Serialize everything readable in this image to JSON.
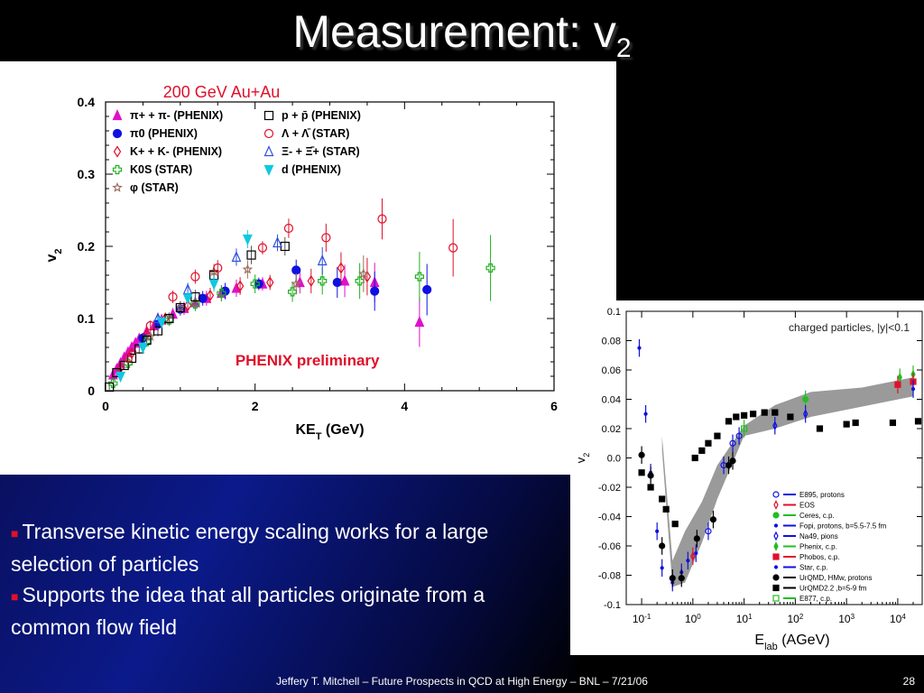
{
  "slide": {
    "title_main": "Measurement: v",
    "title_sub": "2",
    "footer": "Jeffery T. Mitchell – Future Prospects in QCD at High Energy – BNL – 7/21/06",
    "page_number": "28",
    "bullets": [
      "Transverse kinetic energy scaling works for a large selection of particles",
      "Supports the idea that all particles originate from a common flow field"
    ]
  },
  "chart_data": [
    {
      "type": "scatter",
      "title": "200 GeV Au+Au",
      "annotation": "PHENIX preliminary",
      "xlabel": "KE_T (GeV)",
      "ylabel": "v_2",
      "xlim": [
        0,
        6
      ],
      "ylim": [
        0,
        0.4
      ],
      "xticks": [
        "0",
        "2",
        "4",
        "6"
      ],
      "yticks": [
        "0",
        "0.1",
        "0.2",
        "0.3",
        "0.4"
      ],
      "colors": {
        "red": "#e0102a",
        "magenta": "#e010c8",
        "blue": "#1010e0",
        "green": "#20b020",
        "cyan": "#10c8e0",
        "brown": "#9a7060"
      },
      "series": [
        {
          "name": "π+ + π- (PHENIX)",
          "marker": "triangle-up",
          "color": "#e010c8",
          "filled": true,
          "points": [
            [
              0.1,
              0.022
            ],
            [
              0.15,
              0.03
            ],
            [
              0.2,
              0.038
            ],
            [
              0.25,
              0.046
            ],
            [
              0.3,
              0.053
            ],
            [
              0.35,
              0.06
            ],
            [
              0.4,
              0.066
            ],
            [
              0.45,
              0.072
            ],
            [
              0.55,
              0.082
            ],
            [
              0.65,
              0.09
            ],
            [
              0.75,
              0.098
            ],
            [
              0.9,
              0.106
            ],
            [
              1.05,
              0.114
            ],
            [
              1.2,
              0.122
            ],
            [
              1.35,
              0.128
            ],
            [
              1.55,
              0.135
            ],
            [
              1.75,
              0.142
            ],
            [
              2.1,
              0.148
            ],
            [
              2.6,
              0.15
            ],
            [
              3.2,
              0.152
            ],
            [
              3.6,
              0.15
            ],
            [
              4.2,
              0.095
            ]
          ]
        },
        {
          "name": "π0 (PHENIX)",
          "marker": "circle",
          "color": "#1010e0",
          "filled": true,
          "points": [
            [
              0.5,
              0.073
            ],
            [
              0.7,
              0.092
            ],
            [
              1.0,
              0.113
            ],
            [
              1.3,
              0.128
            ],
            [
              1.6,
              0.138
            ],
            [
              2.05,
              0.148
            ],
            [
              2.55,
              0.167
            ],
            [
              3.1,
              0.15
            ],
            [
              3.6,
              0.138
            ],
            [
              4.3,
              0.14
            ]
          ]
        },
        {
          "name": "K+ + K- (PHENIX)",
          "marker": "diamond",
          "color": "#e0102a",
          "filled": false,
          "points": [
            [
              0.2,
              0.032
            ],
            [
              0.35,
              0.052
            ],
            [
              0.55,
              0.078
            ],
            [
              0.8,
              0.1
            ],
            [
              1.1,
              0.118
            ],
            [
              1.4,
              0.132
            ],
            [
              1.8,
              0.145
            ],
            [
              2.2,
              0.15
            ],
            [
              2.75,
              0.152
            ],
            [
              3.15,
              0.17
            ],
            [
              3.5,
              0.158
            ]
          ]
        },
        {
          "name": "K0S (STAR)",
          "marker": "cross",
          "color": "#20b020",
          "filled": false,
          "points": [
            [
              0.1,
              0.01
            ],
            [
              0.3,
              0.038
            ],
            [
              0.55,
              0.068
            ],
            [
              0.85,
              0.098
            ],
            [
              1.2,
              0.12
            ],
            [
              1.55,
              0.135
            ],
            [
              2.0,
              0.148
            ],
            [
              2.5,
              0.137
            ],
            [
              2.9,
              0.152
            ],
            [
              3.4,
              0.152
            ],
            [
              4.2,
              0.158
            ],
            [
              5.15,
              0.17
            ]
          ]
        },
        {
          "name": "φ (STAR)",
          "marker": "star",
          "color": "#9a7060",
          "filled": false,
          "points": [
            [
              0.6,
              0.075
            ],
            [
              1.0,
              0.115
            ],
            [
              1.45,
              0.165
            ],
            [
              1.9,
              0.168
            ],
            [
              2.55,
              0.148
            ],
            [
              3.45,
              0.162
            ]
          ]
        },
        {
          "name": "p + p̄ (PHENIX)",
          "marker": "square",
          "color": "#000000",
          "filled": false,
          "points": [
            [
              0.05,
              0.005
            ],
            [
              0.15,
              0.025
            ],
            [
              0.25,
              0.035
            ],
            [
              0.35,
              0.045
            ],
            [
              0.45,
              0.058
            ],
            [
              0.55,
              0.07
            ],
            [
              0.7,
              0.083
            ],
            [
              0.85,
              0.1
            ],
            [
              1.0,
              0.115
            ],
            [
              1.2,
              0.13
            ],
            [
              1.45,
              0.16
            ],
            [
              1.95,
              0.188
            ],
            [
              2.4,
              0.2
            ]
          ]
        },
        {
          "name": "Λ + Λ̄ (STAR)",
          "marker": "circle",
          "color": "#e0102a",
          "filled": false,
          "points": [
            [
              0.3,
              0.045
            ],
            [
              0.6,
              0.09
            ],
            [
              0.9,
              0.13
            ],
            [
              1.2,
              0.158
            ],
            [
              1.5,
              0.17
            ],
            [
              2.1,
              0.198
            ],
            [
              2.45,
              0.225
            ],
            [
              2.95,
              0.212
            ],
            [
              3.7,
              0.238
            ],
            [
              4.65,
              0.198
            ]
          ]
        },
        {
          "name": "Ξ- + Ξ̄+ (STAR)",
          "marker": "triangle-up",
          "color": "#3050e0",
          "filled": false,
          "points": [
            [
              0.7,
              0.1
            ],
            [
              1.1,
              0.14
            ],
            [
              1.75,
              0.185
            ],
            [
              2.3,
              0.205
            ],
            [
              2.9,
              0.18
            ]
          ]
        },
        {
          "name": "d (PHENIX)",
          "marker": "triangle-down",
          "color": "#10c8e0",
          "filled": true,
          "points": [
            [
              0.2,
              0.02
            ],
            [
              0.5,
              0.06
            ],
            [
              0.75,
              0.095
            ],
            [
              1.1,
              0.128
            ],
            [
              1.45,
              0.148
            ],
            [
              1.9,
              0.21
            ]
          ]
        }
      ]
    },
    {
      "type": "scatter",
      "title": "charged particles, |y|<0.1",
      "xlabel": "E_lab (AGeV)",
      "ylabel": "v_2",
      "x_scale": "log",
      "xlim": [
        0.05,
        30000
      ],
      "ylim": [
        -0.1,
        0.1
      ],
      "xticks": [
        "10-1",
        "100",
        "101",
        "102",
        "103",
        "104"
      ],
      "yticks": [
        "-0.1",
        "-0.08",
        "-0.06",
        "-0.04",
        "-0.02",
        "0.0",
        "0.02",
        "0.04",
        "0.06",
        "0.08",
        "0.1"
      ],
      "band": {
        "x": [
          0.25,
          0.4,
          0.7,
          1.5,
          3,
          10,
          40,
          200,
          2000,
          20000
        ],
        "upper": [
          0.015,
          -0.07,
          -0.05,
          -0.03,
          -0.005,
          0.022,
          0.036,
          0.045,
          0.048,
          0.055
        ],
        "lower": [
          0.005,
          -0.088,
          -0.085,
          -0.058,
          -0.028,
          0.015,
          0.02,
          0.028,
          0.035,
          0.042
        ]
      },
      "series": [
        {
          "name": "E895, protons",
          "marker": "circle",
          "color": "#1010e0",
          "filled": false,
          "points": [
            [
              2,
              -0.05
            ],
            [
              4,
              -0.005
            ],
            [
              6,
              0.01
            ],
            [
              8,
              0.015
            ]
          ]
        },
        {
          "name": "EOS",
          "marker": "diamond",
          "color": "#e0102a",
          "filled": false,
          "points": [
            [
              1.0,
              -0.067
            ]
          ]
        },
        {
          "name": "Ceres, c.p.",
          "marker": "circle",
          "color": "#20c020",
          "filled": true,
          "points": [
            [
              158,
              0.04
            ]
          ]
        },
        {
          "name": "Fopi, protons, b=5.5-7.5 fm",
          "marker": "dot",
          "color": "#1010e0",
          "filled": true,
          "points": [
            [
              0.09,
              0.075
            ],
            [
              0.12,
              0.03
            ],
            [
              0.15,
              -0.01
            ],
            [
              0.2,
              -0.05
            ],
            [
              0.25,
              -0.075
            ],
            [
              0.4,
              -0.085
            ],
            [
              0.6,
              -0.078
            ],
            [
              0.8,
              -0.07
            ],
            [
              1.15,
              -0.065
            ]
          ]
        },
        {
          "name": "Na49, pions",
          "marker": "diamond",
          "color": "#1010e0",
          "filled": false,
          "points": [
            [
              40,
              0.022
            ],
            [
              158,
              0.03
            ]
          ]
        },
        {
          "name": "Phenix, c.p.",
          "marker": "diamond",
          "color": "#20c020",
          "filled": true,
          "points": [
            [
              11000,
              0.055
            ],
            [
              20000,
              0.057
            ]
          ]
        },
        {
          "name": "Phobos, c.p.",
          "marker": "square",
          "color": "#e0102a",
          "filled": true,
          "points": [
            [
              10000,
              0.05
            ],
            [
              20000,
              0.052
            ]
          ]
        },
        {
          "name": "Star, c.p.",
          "marker": "dot",
          "color": "#1010e0",
          "filled": true,
          "points": [
            [
              20000,
              0.047
            ]
          ]
        },
        {
          "name": "UrQMD, HMw, protons",
          "marker": "circle",
          "color": "#000000",
          "filled": true,
          "points": [
            [
              0.1,
              0.002
            ],
            [
              0.15,
              -0.012
            ],
            [
              0.25,
              -0.06
            ],
            [
              0.4,
              -0.082
            ],
            [
              0.6,
              -0.082
            ],
            [
              1.2,
              -0.055
            ],
            [
              2.5,
              -0.042
            ],
            [
              5,
              -0.005
            ],
            [
              6,
              -0.002
            ]
          ]
        },
        {
          "name": "UrQMD2.2 ,b=5-9 fm",
          "marker": "square",
          "color": "#000000",
          "filled": true,
          "points": [
            [
              0.1,
              -0.01
            ],
            [
              0.15,
              -0.02
            ],
            [
              0.25,
              -0.028
            ],
            [
              0.3,
              -0.035
            ],
            [
              0.45,
              -0.045
            ],
            [
              1.1,
              0.0
            ],
            [
              1.5,
              0.005
            ],
            [
              2,
              0.01
            ],
            [
              3,
              0.015
            ],
            [
              5,
              0.025
            ],
            [
              7,
              0.028
            ],
            [
              10,
              0.029
            ],
            [
              15,
              0.03
            ],
            [
              25,
              0.031
            ],
            [
              40,
              0.031
            ],
            [
              80,
              0.028
            ],
            [
              300,
              0.02
            ],
            [
              1000,
              0.023
            ],
            [
              1500,
              0.024
            ],
            [
              8000,
              0.024
            ],
            [
              25000,
              0.025
            ]
          ]
        },
        {
          "name": "E877, c.p.",
          "marker": "square",
          "color": "#20c020",
          "filled": false,
          "points": [
            [
              10,
              0.02
            ]
          ]
        }
      ]
    }
  ]
}
